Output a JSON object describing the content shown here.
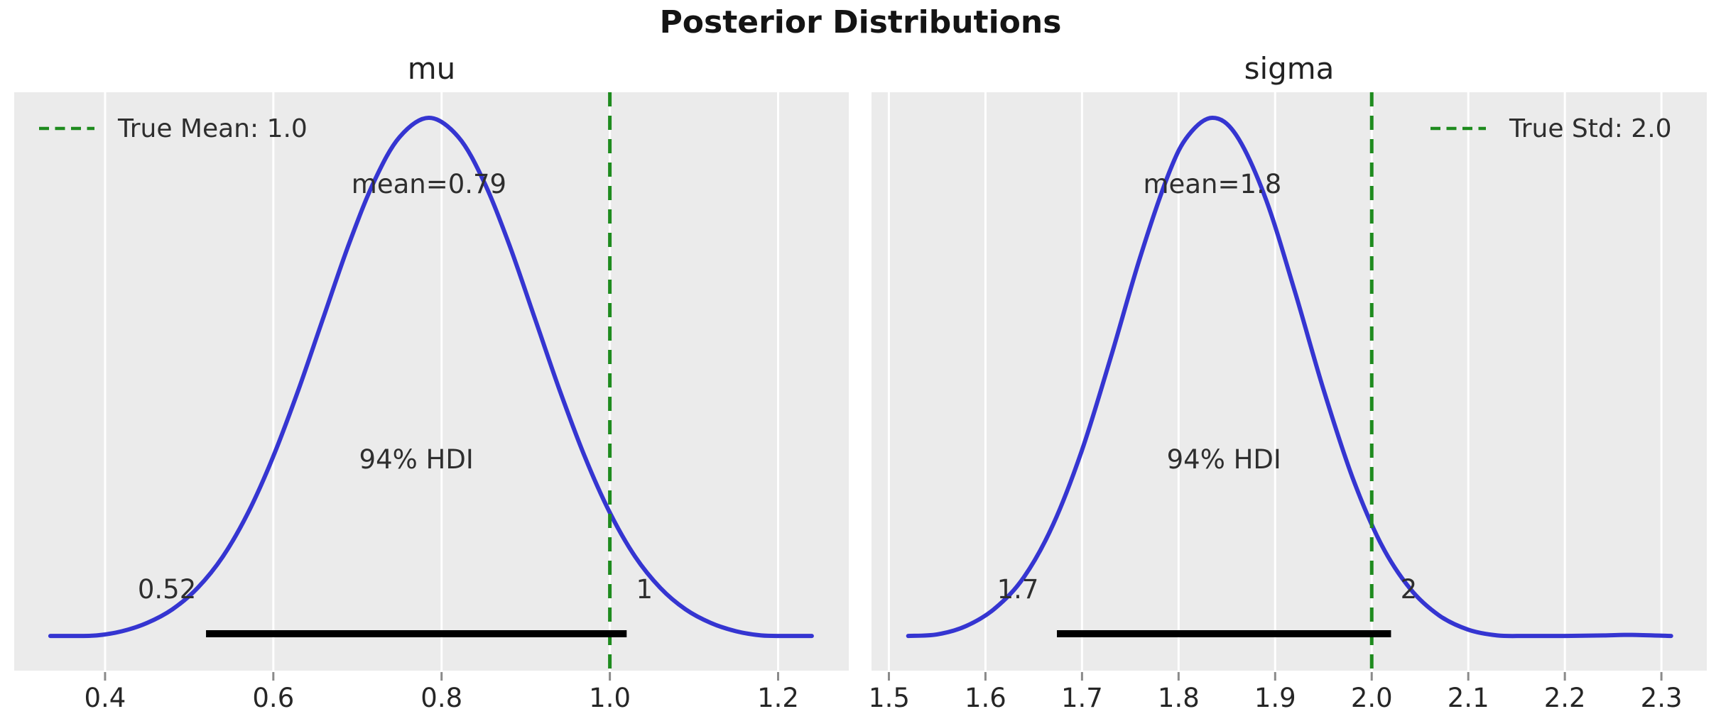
{
  "page": {
    "suptitle": "Posterior Distributions"
  },
  "colors": {
    "background": "#ffffff",
    "plot_bg": "#ebebeb",
    "grid": "#ffffff",
    "kde_line": "#3535d1",
    "hdi_bar": "#000000",
    "true_line": "#1e8b1e",
    "annotation_text": "#2e2e2e",
    "tick_mark": "#8a8a8a",
    "tick_label": "#262626"
  },
  "chart_data": [
    {
      "type": "line",
      "variable": "mu",
      "title": "mu",
      "xlim": [
        0.292,
        1.284
      ],
      "x_ticks": [
        0.4,
        0.6,
        0.8,
        1.0,
        1.2
      ],
      "x_tick_labels": [
        "0.4",
        "0.6",
        "0.8",
        "1.0",
        "1.2"
      ],
      "mean": 0.79,
      "mean_label": "mean=0.79",
      "mean_label_x": 0.785,
      "hdi_text": "94% HDI",
      "hdi_prob": 0.94,
      "hdi": [
        0.52,
        1.02
      ],
      "hdi_bound_labels": [
        "0.52",
        "1"
      ],
      "true_value": 1.0,
      "legend_label": "True Mean: 1.0",
      "legend_position": "upper-left",
      "curve": {
        "x": [
          0.335,
          0.36,
          0.39,
          0.42,
          0.45,
          0.48,
          0.51,
          0.54,
          0.57,
          0.6,
          0.63,
          0.66,
          0.69,
          0.72,
          0.75,
          0.785,
          0.82,
          0.85,
          0.88,
          0.91,
          0.94,
          0.97,
          1.0,
          1.03,
          1.06,
          1.09,
          1.12,
          1.15,
          1.18,
          1.21,
          1.24
        ],
        "density": [
          0.008,
          0.008,
          0.009,
          0.017,
          0.033,
          0.059,
          0.1,
          0.16,
          0.244,
          0.352,
          0.48,
          0.62,
          0.759,
          0.879,
          0.963,
          1.0,
          0.963,
          0.879,
          0.759,
          0.62,
          0.48,
          0.352,
          0.244,
          0.16,
          0.1,
          0.059,
          0.033,
          0.017,
          0.009,
          0.008,
          0.008
        ]
      }
    },
    {
      "type": "line",
      "variable": "sigma",
      "title": "sigma",
      "xlim": [
        1.482,
        2.347
      ],
      "x_ticks": [
        1.5,
        1.6,
        1.7,
        1.8,
        1.9,
        2.0,
        2.1,
        2.2,
        2.3
      ],
      "x_tick_labels": [
        "1.5",
        "1.6",
        "1.7",
        "1.8",
        "1.9",
        "2.0",
        "2.1",
        "2.2",
        "2.3"
      ],
      "mean": 1.8,
      "mean_label": "mean=1.8",
      "mean_label_x": 1.835,
      "hdi_text": "94% HDI",
      "hdi_prob": 0.94,
      "hdi": [
        1.674,
        2.02
      ],
      "hdi_bound_labels": [
        "1.7",
        "2"
      ],
      "true_value": 2.0,
      "legend_label": "True Std: 2.0",
      "legend_position": "upper-right",
      "curve": {
        "x": [
          1.52,
          1.55,
          1.58,
          1.61,
          1.64,
          1.67,
          1.7,
          1.73,
          1.76,
          1.79,
          1.81,
          1.835,
          1.86,
          1.89,
          1.92,
          1.95,
          1.98,
          2.01,
          2.04,
          2.07,
          2.1,
          2.13,
          2.16,
          2.2,
          2.24,
          2.27,
          2.31
        ],
        "density": [
          0.008,
          0.011,
          0.027,
          0.061,
          0.121,
          0.221,
          0.364,
          0.543,
          0.732,
          0.894,
          0.966,
          1.0,
          0.966,
          0.846,
          0.67,
          0.48,
          0.312,
          0.183,
          0.098,
          0.047,
          0.02,
          0.009,
          0.008,
          0.008,
          0.009,
          0.01,
          0.008
        ]
      }
    }
  ]
}
